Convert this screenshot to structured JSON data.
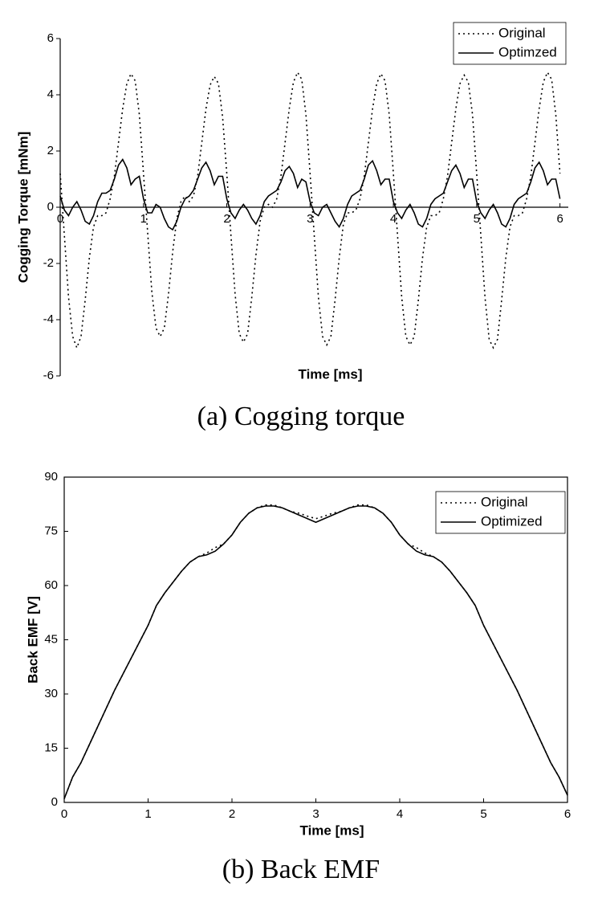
{
  "chart_data": [
    {
      "type": "line",
      "caption": "(a)  Cogging  torque",
      "x_label": "Time [ms]",
      "y_label": "Cogging Torque [mNm]",
      "x": [
        0,
        0.05,
        0.1,
        0.15,
        0.2,
        0.25,
        0.3,
        0.35,
        0.4,
        0.45,
        0.5,
        0.55,
        0.6,
        0.65,
        0.7,
        0.75,
        0.8,
        0.85,
        0.9,
        0.95,
        1,
        1.05,
        1.1,
        1.15,
        1.2,
        1.25,
        1.3,
        1.35,
        1.4,
        1.45,
        1.5,
        1.55,
        1.6,
        1.65,
        1.7,
        1.75,
        1.8,
        1.85,
        1.9,
        1.95,
        2,
        2.05,
        2.1,
        2.15,
        2.2,
        2.25,
        2.3,
        2.35,
        2.4,
        2.45,
        2.5,
        2.55,
        2.6,
        2.65,
        2.7,
        2.75,
        2.8,
        2.85,
        2.9,
        2.95,
        3,
        3.05,
        3.1,
        3.15,
        3.2,
        3.25,
        3.3,
        3.35,
        3.4,
        3.45,
        3.5,
        3.55,
        3.6,
        3.65,
        3.7,
        3.75,
        3.8,
        3.85,
        3.9,
        3.95,
        4,
        4.05,
        4.1,
        4.15,
        4.2,
        4.25,
        4.3,
        4.35,
        4.4,
        4.45,
        4.5,
        4.55,
        4.6,
        4.65,
        4.7,
        4.75,
        4.8,
        4.85,
        4.9,
        4.95,
        5,
        5.05,
        5.1,
        5.15,
        5.2,
        5.25,
        5.3,
        5.35,
        5.4,
        5.45,
        5.5,
        5.55,
        5.6,
        5.65,
        5.7,
        5.75,
        5.8,
        5.85,
        5.9,
        5.95,
        6
      ],
      "series": [
        {
          "name": "Original",
          "color": "#000000",
          "style": "dotted",
          "values": [
            1.2,
            -1.0,
            -3.2,
            -4.6,
            -5.0,
            -4.6,
            -3.3,
            -1.8,
            -0.7,
            -0.3,
            -0.3,
            -0.2,
            0.3,
            1.1,
            2.3,
            3.5,
            4.4,
            4.75,
            4.5,
            3.3,
            1.2,
            -0.9,
            -3.0,
            -4.3,
            -4.6,
            -4.3,
            -3.1,
            -1.6,
            -0.4,
            0.2,
            0.4,
            0.2,
            0.4,
            1.1,
            2.3,
            3.5,
            4.35,
            4.65,
            4.4,
            3.2,
            1.2,
            -1.0,
            -3.1,
            -4.5,
            -4.8,
            -4.5,
            -3.2,
            -1.7,
            -0.5,
            0.0,
            0.1,
            0.0,
            0.3,
            1.1,
            2.3,
            3.5,
            4.45,
            4.8,
            4.55,
            3.3,
            1.2,
            -1.0,
            -3.2,
            -4.6,
            -4.9,
            -4.6,
            -3.3,
            -1.8,
            -0.6,
            -0.2,
            -0.2,
            -0.1,
            0.3,
            1.1,
            2.3,
            3.5,
            4.4,
            4.75,
            4.5,
            3.3,
            1.2,
            -1.0,
            -3.2,
            -4.6,
            -4.9,
            -4.6,
            -3.3,
            -1.8,
            -0.7,
            -0.3,
            -0.3,
            -0.2,
            0.3,
            1.1,
            2.3,
            3.5,
            4.4,
            4.7,
            4.45,
            3.3,
            1.2,
            -1.0,
            -3.2,
            -4.7,
            -5.0,
            -4.7,
            -3.3,
            -1.8,
            -0.7,
            -0.3,
            -0.3,
            -0.2,
            0.3,
            1.1,
            2.3,
            3.5,
            4.45,
            4.8,
            4.55,
            3.3,
            1.2
          ]
        },
        {
          "name": "Optimzed",
          "color": "#000000",
          "style": "solid",
          "values": [
            0.4,
            -0.1,
            -0.3,
            0.0,
            0.2,
            -0.1,
            -0.5,
            -0.6,
            -0.3,
            0.2,
            0.5,
            0.5,
            0.6,
            1.0,
            1.5,
            1.7,
            1.4,
            0.8,
            1.0,
            1.1,
            0.3,
            -0.2,
            -0.2,
            0.1,
            0.0,
            -0.4,
            -0.7,
            -0.8,
            -0.5,
            0.0,
            0.3,
            0.4,
            0.6,
            1.0,
            1.4,
            1.6,
            1.3,
            0.8,
            1.1,
            1.1,
            0.3,
            -0.2,
            -0.4,
            -0.1,
            0.1,
            -0.1,
            -0.4,
            -0.6,
            -0.3,
            0.2,
            0.4,
            0.5,
            0.6,
            0.9,
            1.3,
            1.45,
            1.2,
            0.7,
            1.0,
            0.9,
            0.2,
            -0.2,
            -0.3,
            0.0,
            0.1,
            -0.2,
            -0.5,
            -0.7,
            -0.4,
            0.1,
            0.4,
            0.5,
            0.6,
            1.0,
            1.5,
            1.65,
            1.3,
            0.8,
            1.0,
            1.0,
            0.2,
            -0.2,
            -0.4,
            -0.1,
            0.1,
            -0.2,
            -0.6,
            -0.7,
            -0.4,
            0.1,
            0.3,
            0.4,
            0.5,
            0.9,
            1.3,
            1.5,
            1.2,
            0.7,
            1.0,
            1.0,
            0.2,
            -0.2,
            -0.4,
            -0.1,
            0.1,
            -0.2,
            -0.6,
            -0.7,
            -0.4,
            0.1,
            0.3,
            0.4,
            0.5,
            0.9,
            1.4,
            1.6,
            1.3,
            0.8,
            1.0,
            1.0,
            0.3
          ]
        }
      ],
      "xlim": [
        0,
        6.1
      ],
      "ylim": [
        -6,
        6
      ],
      "xticks": [
        0,
        1,
        2,
        3,
        4,
        5,
        6
      ],
      "yticks": [
        -6,
        -4,
        -2,
        0,
        2,
        4,
        6
      ],
      "frame": false,
      "legend": "upper right"
    },
    {
      "type": "line",
      "caption": "(b)  Back  EMF",
      "x_label": "Time [ms]",
      "y_label": "Back EMF [V]",
      "x": [
        0,
        0.1,
        0.2,
        0.3,
        0.4,
        0.5,
        0.6,
        0.7,
        0.8,
        0.9,
        1,
        1.1,
        1.2,
        1.3,
        1.4,
        1.5,
        1.6,
        1.7,
        1.8,
        1.9,
        2,
        2.1,
        2.2,
        2.3,
        2.4,
        2.5,
        2.6,
        2.7,
        2.8,
        2.9,
        3,
        3.1,
        3.2,
        3.3,
        3.4,
        3.5,
        3.6,
        3.7,
        3.8,
        3.9,
        4,
        4.1,
        4.2,
        4.3,
        4.4,
        4.5,
        4.6,
        4.7,
        4.8,
        4.9,
        5,
        5.1,
        5.2,
        5.3,
        5.4,
        5.5,
        5.6,
        5.7,
        5.8,
        5.9,
        6
      ],
      "series": [
        {
          "name": "Original",
          "color": "#000000",
          "style": "dotted",
          "values": [
            1,
            7,
            11,
            16,
            21,
            26,
            31,
            35.5,
            40,
            44.5,
            49,
            54.5,
            58,
            61,
            64,
            66.5,
            68,
            69,
            70.5,
            71.5,
            74,
            77.5,
            80,
            81.5,
            82.3,
            82.3,
            81.5,
            80.5,
            80,
            79.2,
            78.5,
            79.2,
            80,
            80.5,
            81.5,
            82.3,
            82.3,
            81.5,
            80,
            77.5,
            74,
            71.5,
            70.5,
            69,
            68,
            66.5,
            64,
            61,
            58,
            54.5,
            49,
            44.5,
            40,
            35.5,
            31,
            26,
            21,
            16,
            11,
            7,
            2
          ]
        },
        {
          "name": "Optimized",
          "color": "#000000",
          "style": "solid",
          "values": [
            1,
            7,
            11,
            16,
            21,
            26,
            31,
            35.5,
            40,
            44.5,
            49,
            54.5,
            58,
            61,
            64,
            66.5,
            68,
            68.5,
            69.5,
            71.5,
            74,
            77.5,
            80,
            81.5,
            82,
            82,
            81.5,
            80.5,
            79.5,
            78.5,
            77.5,
            78.5,
            79.5,
            80.5,
            81.5,
            82,
            82,
            81.5,
            80,
            77.5,
            74,
            71.5,
            69.5,
            68.5,
            68,
            66.5,
            64,
            61,
            58,
            54.5,
            49,
            44.5,
            40,
            35.5,
            31,
            26,
            21,
            16,
            11,
            7,
            2
          ]
        }
      ],
      "xlim": [
        0,
        6
      ],
      "ylim": [
        0,
        90
      ],
      "xticks": [
        0,
        1,
        2,
        3,
        4,
        5,
        6
      ],
      "yticks": [
        0,
        15,
        30,
        45,
        60,
        75,
        90
      ],
      "frame": true,
      "legend": "upper right"
    }
  ]
}
